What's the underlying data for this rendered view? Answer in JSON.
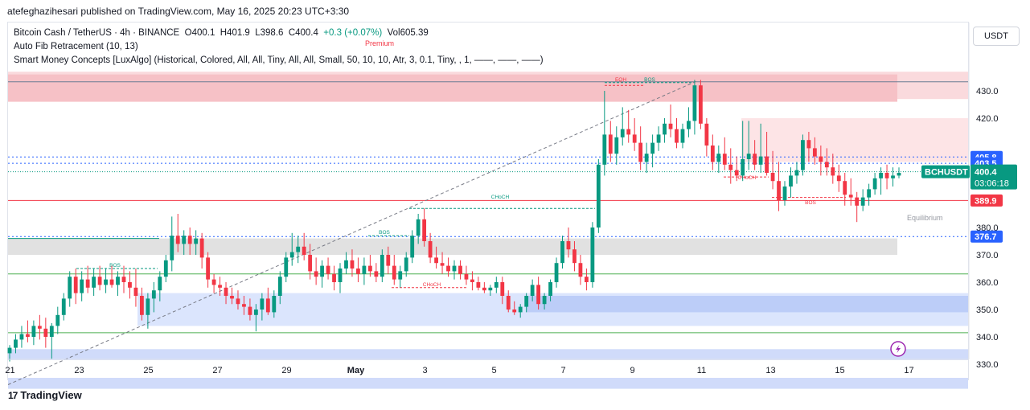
{
  "header": {
    "publisher_line": "atefeghazihesari published on TradingView.com, May 16, 2025 20:23 UTC+3:30"
  },
  "legend": {
    "symbol": "Bitcoin Cash / TetherUS · 4h · BINANCE",
    "o": "O400.1",
    "h": "H401.9",
    "l": "L398.6",
    "c": "C400.4",
    "chg": "+0.3 (+0.07%)",
    "vol": "Vol605.39",
    "fib": "Auto Fib Retracement (10, 13)",
    "smc": "Smart Money Concepts [LuxAlgo] (Historical, Colored, All, All, Tiny, All, All, Small, 50, 10, 10, Atr, 3, 0.1, Tiny, , 1, ——, ——, ——)"
  },
  "currency_button": "USDT",
  "brand": "TradingView",
  "colors": {
    "up": "#089981",
    "down": "#f23645",
    "blue": "#2962ff",
    "premium_zone": "#f7c6c9",
    "discount_zone": "#c5d3f7",
    "equilibrium_zone": "#e0e0e0"
  },
  "chart_data": {
    "type": "candlestick",
    "symbol": "BCHUSDT",
    "timeframe": "4h",
    "exchange": "BINANCE",
    "ylim": [
      320,
      437
    ],
    "y_ticks": [
      330.0,
      340.0,
      350.0,
      360.0,
      370.0,
      380.0,
      420.0,
      430.0
    ],
    "x_ticks": [
      "21",
      "23",
      "25",
      "27",
      "29",
      "May",
      "3",
      "5",
      "7",
      "9",
      "11",
      "13",
      "15",
      "17"
    ],
    "price_labels": [
      {
        "text": "405.8",
        "value": 405.8,
        "color": "#2962ff"
      },
      {
        "text": "403.5",
        "value": 403.5,
        "color": "#2962ff"
      },
      {
        "text": "BCHUSDT",
        "value": 400.4,
        "color": "#089981"
      },
      {
        "text": "400.4",
        "value": 400.4,
        "color": "#089981"
      },
      {
        "text": "03:06:18",
        "value": 400.4,
        "color": "#089981"
      },
      {
        "text": "389.9",
        "value": 389.9,
        "color": "#f23645"
      },
      {
        "text": "376.7",
        "value": 376.7,
        "color": "#2962ff"
      }
    ],
    "zone_labels": {
      "premium": "Premium",
      "equilibrium": "Equilibrium"
    },
    "structure_labels": [
      {
        "text": "BOS",
        "color": "#089981",
        "at": "Apr 24",
        "value": 365
      },
      {
        "text": "BOS",
        "color": "#089981",
        "at": "May 2",
        "value": 377
      },
      {
        "text": "CHoCH",
        "color": "#f23645",
        "at": "May 3",
        "value": 358
      },
      {
        "text": "CHoCH",
        "color": "#089981",
        "at": "May 5",
        "value": 390
      },
      {
        "text": "EQH",
        "color": "#f23645",
        "at": "May 8",
        "value": 433
      },
      {
        "text": "BOS",
        "color": "#089981",
        "at": "May 9",
        "value": 433
      },
      {
        "text": "CHoCH",
        "color": "#f23645",
        "at": "May 12",
        "value": 397
      },
      {
        "text": "BOS",
        "color": "#f23645",
        "at": "May 14",
        "value": 388
      }
    ],
    "candles": [
      [
        334,
        337,
        331,
        336
      ],
      [
        336,
        341,
        334,
        339
      ],
      [
        339,
        344,
        336,
        341
      ],
      [
        341,
        346,
        338,
        340
      ],
      [
        340,
        346,
        337,
        344
      ],
      [
        344,
        348,
        339,
        343
      ],
      [
        343,
        347,
        336,
        340
      ],
      [
        340,
        345,
        332,
        344
      ],
      [
        344,
        351,
        341,
        348
      ],
      [
        348,
        356,
        346,
        354
      ],
      [
        354,
        364,
        351,
        362
      ],
      [
        362,
        365,
        352,
        356
      ],
      [
        356,
        364,
        353,
        361
      ],
      [
        361,
        366,
        356,
        358
      ],
      [
        358,
        365,
        355,
        362
      ],
      [
        362,
        366,
        357,
        359
      ],
      [
        359,
        365,
        356,
        361
      ],
      [
        361,
        366,
        358,
        359
      ],
      [
        359,
        364,
        355,
        362
      ],
      [
        362,
        366,
        356,
        360
      ],
      [
        360,
        364,
        354,
        358
      ],
      [
        358,
        365,
        351,
        355
      ],
      [
        355,
        358,
        346,
        348
      ],
      [
        348,
        356,
        343,
        354
      ],
      [
        354,
        360,
        349,
        357
      ],
      [
        357,
        364,
        353,
        362
      ],
      [
        362,
        370,
        360,
        368
      ],
      [
        368,
        384,
        364,
        377
      ],
      [
        377,
        385,
        371,
        374
      ],
      [
        374,
        379,
        370,
        377
      ],
      [
        377,
        380,
        370,
        374
      ],
      [
        374,
        379,
        370,
        376
      ],
      [
        376,
        378,
        365,
        369
      ],
      [
        369,
        371,
        358,
        361
      ],
      [
        361,
        363,
        356,
        359
      ],
      [
        359,
        362,
        355,
        358
      ],
      [
        358,
        360,
        352,
        355
      ],
      [
        355,
        358,
        352,
        354
      ],
      [
        354,
        357,
        350,
        352
      ],
      [
        352,
        355,
        348,
        351
      ],
      [
        351,
        354,
        346,
        348
      ],
      [
        348,
        352,
        342,
        350
      ],
      [
        350,
        356,
        346,
        354
      ],
      [
        354,
        358,
        348,
        349
      ],
      [
        349,
        357,
        347,
        355
      ],
      [
        355,
        364,
        352,
        362
      ],
      [
        362,
        371,
        360,
        369
      ],
      [
        369,
        378,
        366,
        371
      ],
      [
        371,
        377,
        367,
        373
      ],
      [
        373,
        378,
        368,
        370
      ],
      [
        370,
        374,
        361,
        364
      ],
      [
        364,
        369,
        359,
        362
      ],
      [
        362,
        368,
        358,
        366
      ],
      [
        366,
        369,
        361,
        363
      ],
      [
        363,
        366,
        357,
        360
      ],
      [
        360,
        367,
        356,
        365
      ],
      [
        365,
        371,
        363,
        368
      ],
      [
        368,
        372,
        362,
        365
      ],
      [
        365,
        369,
        360,
        363
      ],
      [
        363,
        369,
        359,
        366
      ],
      [
        366,
        370,
        362,
        364
      ],
      [
        364,
        367,
        360,
        362
      ],
      [
        362,
        372,
        360,
        370
      ],
      [
        370,
        373,
        363,
        366
      ],
      [
        366,
        370,
        359,
        361
      ],
      [
        361,
        366,
        358,
        364
      ],
      [
        364,
        371,
        362,
        369
      ],
      [
        369,
        379,
        367,
        377
      ],
      [
        377,
        385,
        374,
        383
      ],
      [
        383,
        387,
        373,
        375
      ],
      [
        375,
        378,
        367,
        369
      ],
      [
        369,
        373,
        365,
        367
      ],
      [
        367,
        371,
        363,
        366
      ],
      [
        366,
        369,
        362,
        364
      ],
      [
        364,
        368,
        361,
        366
      ],
      [
        366,
        368,
        361,
        363
      ],
      [
        363,
        366,
        359,
        361
      ],
      [
        361,
        364,
        357,
        360
      ],
      [
        360,
        362,
        357,
        358
      ],
      [
        358,
        360,
        356,
        357
      ],
      [
        357,
        359,
        355,
        358
      ],
      [
        358,
        362,
        356,
        360
      ],
      [
        360,
        362,
        352,
        355
      ],
      [
        355,
        357,
        349,
        350
      ],
      [
        350,
        353,
        348,
        349
      ],
      [
        349,
        352,
        347,
        351
      ],
      [
        351,
        356,
        349,
        355
      ],
      [
        355,
        361,
        353,
        359
      ],
      [
        359,
        362,
        350,
        352
      ],
      [
        352,
        356,
        350,
        355
      ],
      [
        355,
        361,
        353,
        360
      ],
      [
        360,
        369,
        358,
        367
      ],
      [
        367,
        377,
        365,
        375
      ],
      [
        375,
        380,
        369,
        372
      ],
      [
        372,
        375,
        364,
        367
      ],
      [
        367,
        370,
        359,
        362
      ],
      [
        362,
        365,
        357,
        360
      ],
      [
        360,
        382,
        358,
        380
      ],
      [
        380,
        405,
        378,
        403
      ],
      [
        403,
        430,
        399,
        414
      ],
      [
        414,
        419,
        404,
        407
      ],
      [
        407,
        417,
        403,
        413
      ],
      [
        413,
        424,
        410,
        416
      ],
      [
        416,
        423,
        411,
        414
      ],
      [
        414,
        420,
        408,
        411
      ],
      [
        411,
        417,
        401,
        404
      ],
      [
        404,
        411,
        400,
        407
      ],
      [
        407,
        414,
        402,
        411
      ],
      [
        411,
        417,
        408,
        414
      ],
      [
        414,
        420,
        411,
        418
      ],
      [
        418,
        425,
        413,
        416
      ],
      [
        416,
        420,
        409,
        411
      ],
      [
        411,
        418,
        409,
        416
      ],
      [
        416,
        424,
        413,
        419
      ],
      [
        419,
        434,
        414,
        432
      ],
      [
        432,
        434,
        416,
        418
      ],
      [
        418,
        420,
        406,
        410
      ],
      [
        410,
        414,
        401,
        404
      ],
      [
        404,
        410,
        400,
        407
      ],
      [
        407,
        413,
        401,
        403
      ],
      [
        403,
        409,
        396,
        401
      ],
      [
        401,
        406,
        397,
        399
      ],
      [
        399,
        419,
        397,
        405
      ],
      [
        405,
        419,
        401,
        407
      ],
      [
        407,
        412,
        401,
        403
      ],
      [
        403,
        418,
        400,
        406
      ],
      [
        406,
        415,
        399,
        400
      ],
      [
        400,
        408,
        394,
        397
      ],
      [
        397,
        404,
        386,
        390
      ],
      [
        390,
        397,
        388,
        395
      ],
      [
        395,
        402,
        391,
        399
      ],
      [
        399,
        404,
        396,
        401
      ],
      [
        401,
        414,
        399,
        412
      ],
      [
        412,
        415,
        404,
        409
      ],
      [
        409,
        413,
        403,
        406
      ],
      [
        406,
        410,
        399,
        404
      ],
      [
        404,
        409,
        399,
        402
      ],
      [
        402,
        407,
        396,
        399
      ],
      [
        399,
        403,
        393,
        397
      ],
      [
        397,
        400,
        388,
        392
      ],
      [
        392,
        398,
        388,
        391
      ],
      [
        391,
        393,
        382,
        388
      ],
      [
        388,
        394,
        386,
        391
      ],
      [
        391,
        396,
        388,
        394
      ],
      [
        394,
        400,
        392,
        398
      ],
      [
        398,
        402,
        392,
        400
      ],
      [
        400,
        403,
        394,
        398
      ],
      [
        398,
        402,
        395,
        399
      ],
      [
        399,
        402,
        398,
        400
      ]
    ]
  }
}
